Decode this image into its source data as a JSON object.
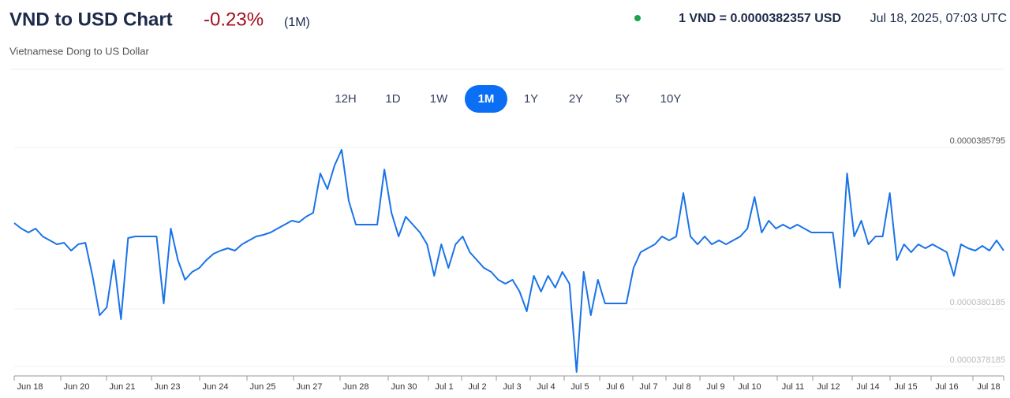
{
  "header": {
    "title": "VND to USD Chart",
    "change": "-0.23%",
    "period": "(1M)",
    "subtitle": "Vietnamese Dong to US Dollar",
    "rate": "1 VND = 0.0000382357 USD",
    "timestamp": "Jul 18, 2025, 07:03 UTC"
  },
  "ranges": {
    "options": [
      "12H",
      "1D",
      "1W",
      "1M",
      "1Y",
      "2Y",
      "5Y",
      "10Y"
    ],
    "active": "1M"
  },
  "chart_data": {
    "type": "line",
    "color": "#1a73e8",
    "values": [
      3.83167e-05,
      3.82976e-05,
      3.82839e-05,
      3.82976e-05,
      3.82702e-05,
      3.82565e-05,
      3.82428e-05,
      3.82483e-05,
      3.8221e-05,
      3.82428e-05,
      3.82483e-05,
      3.81334e-05,
      3.79965e-05,
      3.80239e-05,
      3.81881e-05,
      3.79828e-05,
      3.82647e-05,
      3.82702e-05,
      3.82702e-05,
      3.82702e-05,
      3.82702e-05,
      3.80376e-05,
      3.82976e-05,
      3.81881e-05,
      3.81197e-05,
      3.81471e-05,
      3.81607e-05,
      3.81881e-05,
      3.821e-05,
      3.8221e-05,
      3.82292e-05,
      3.8221e-05,
      3.82428e-05,
      3.82565e-05,
      3.82702e-05,
      3.82757e-05,
      3.82839e-05,
      3.82976e-05,
      3.83113e-05,
      3.8325e-05,
      3.83195e-05,
      3.83386e-05,
      3.83523e-05,
      3.84892e-05,
      3.84344e-05,
      3.85165e-05,
      3.85713e-05,
      3.83934e-05,
      3.83113e-05,
      3.83113e-05,
      3.83113e-05,
      3.83113e-05,
      3.85029e-05,
      3.83523e-05,
      3.82702e-05,
      3.83386e-05,
      3.83113e-05,
      3.82839e-05,
      3.82428e-05,
      3.81334e-05,
      3.82428e-05,
      3.81607e-05,
      3.82428e-05,
      3.82702e-05,
      3.82155e-05,
      3.81881e-05,
      3.81607e-05,
      3.81471e-05,
      3.81197e-05,
      3.8106e-05,
      3.81197e-05,
      3.80786e-05,
      3.80102e-05,
      3.81334e-05,
      3.80786e-05,
      3.81334e-05,
      3.80923e-05,
      3.81471e-05,
      3.8106e-05,
      3.77995e-05,
      3.81471e-05,
      3.79965e-05,
      3.81197e-05,
      3.80376e-05,
      3.80376e-05,
      3.80376e-05,
      3.80376e-05,
      3.81607e-05,
      3.82155e-05,
      3.82292e-05,
      3.82428e-05,
      3.82702e-05,
      3.82565e-05,
      3.82702e-05,
      3.84208e-05,
      3.82702e-05,
      3.82428e-05,
      3.82702e-05,
      3.82428e-05,
      3.82565e-05,
      3.82428e-05,
      3.82565e-05,
      3.82702e-05,
      3.82976e-05,
      3.84071e-05,
      3.82839e-05,
      3.8325e-05,
      3.82976e-05,
      3.83113e-05,
      3.82976e-05,
      3.83113e-05,
      3.82976e-05,
      3.82839e-05,
      3.82839e-05,
      3.82839e-05,
      3.82839e-05,
      3.80923e-05,
      3.84892e-05,
      3.82702e-05,
      3.8325e-05,
      3.82428e-05,
      3.82702e-05,
      3.82702e-05,
      3.84208e-05,
      3.81881e-05,
      3.82428e-05,
      3.82155e-05,
      3.82428e-05,
      3.82292e-05,
      3.82428e-05,
      3.82292e-05,
      3.82155e-05,
      3.81334e-05,
      3.82428e-05,
      3.82292e-05,
      3.8221e-05,
      3.82374e-05,
      3.8221e-05,
      3.82565e-05,
      3.8221e-05
    ],
    "ylim": [
      3.77858e-05,
      3.85795e-05
    ],
    "yticks": [
      3.78185e-05,
      3.80185e-05,
      3.85795e-05
    ],
    "xtick_labels": [
      "Jun 18",
      "Jun 20",
      "Jun 21",
      "Jun 23",
      "Jun 24",
      "Jun 25",
      "Jun 27",
      "Jun 28",
      "Jun 30",
      "Jul 1",
      "Jul 2",
      "Jul 3",
      "Jul 4",
      "Jul 5",
      "Jul 6",
      "Jul 7",
      "Jul 8",
      "Jul 9",
      "Jul 10",
      "Jul 11",
      "Jul 12",
      "Jul 14",
      "Jul 15",
      "Jul 16",
      "Jul 18"
    ],
    "grid": true
  }
}
